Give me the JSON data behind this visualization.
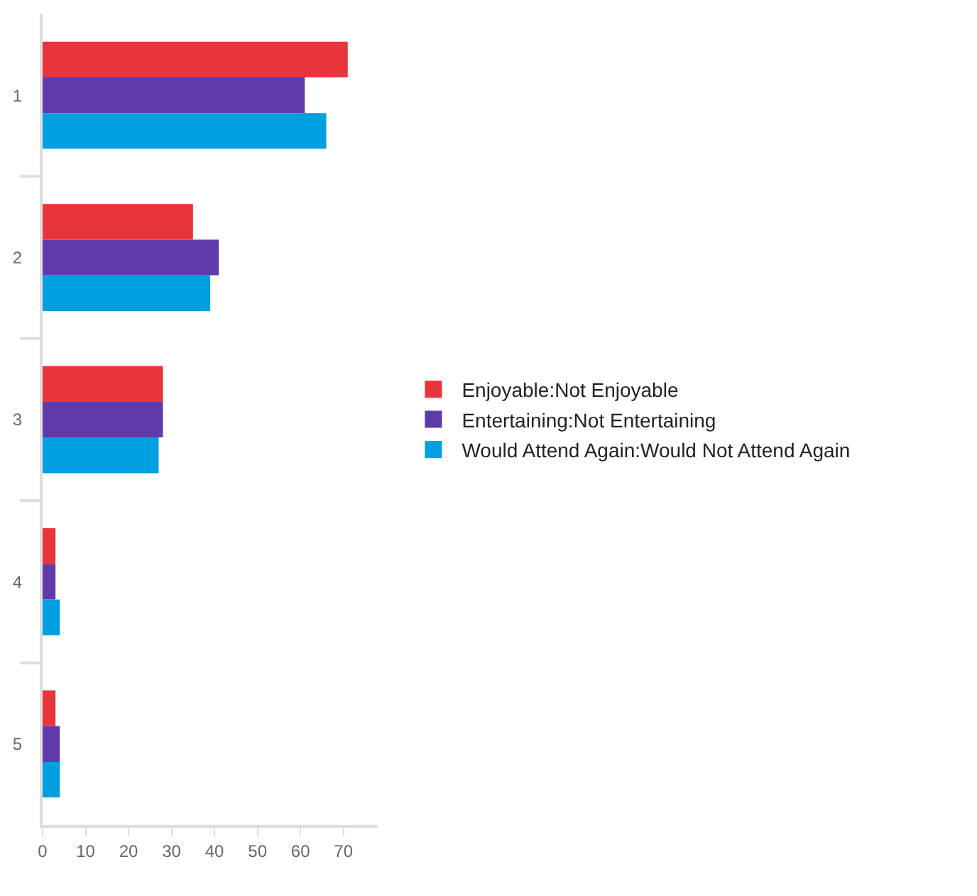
{
  "chart_data": {
    "type": "bar",
    "orientation": "horizontal",
    "categories": [
      "1",
      "2",
      "3",
      "4",
      "5"
    ],
    "series": [
      {
        "name": "Enjoyable:Not Enjoyable",
        "color": "#e8353c",
        "values": [
          71,
          35,
          28,
          3,
          3
        ]
      },
      {
        "name": "Entertaining:Not Entertaining",
        "color": "#603aaa",
        "values": [
          61,
          41,
          28,
          3,
          4
        ]
      },
      {
        "name": "Would Attend Again:Would Not Attend Again",
        "color": "#009fe0",
        "values": [
          66,
          39,
          27,
          4,
          4
        ]
      }
    ],
    "xlim": [
      0,
      78
    ],
    "xticks": [
      0,
      10,
      20,
      30,
      40,
      50,
      60,
      70
    ],
    "legend": "right"
  }
}
